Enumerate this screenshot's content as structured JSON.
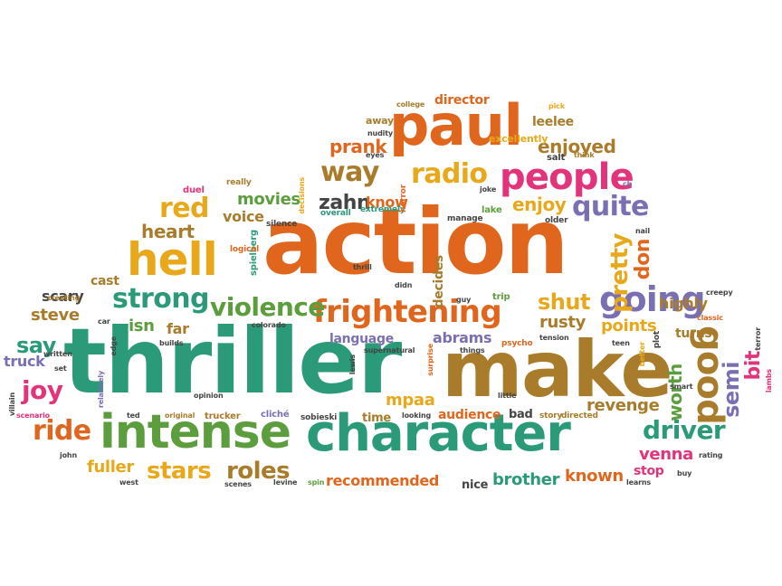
{
  "words": {
    "action": "action",
    "thriller": "thriller",
    "make": "make",
    "character": "character",
    "paul": "paul",
    "intense": "intense",
    "hell": "hell",
    "frightening": "frightening",
    "going": "going",
    "people": "people",
    "good": "good",
    "strong": "strong",
    "violence": "violence",
    "way": "way",
    "radio": "radio",
    "red": "red",
    "quite": "quite",
    "driver": "driver",
    "stars": "stars",
    "roles": "roles",
    "ride": "ride",
    "shut": "shut",
    "pretty": "pretty",
    "prank": "prank",
    "enjoyed": "enjoyed",
    "enjoy": "enjoy",
    "zahn": "zahn",
    "know": "know",
    "heart": "heart",
    "movies": "movies",
    "voice": "voice",
    "bit": "bit",
    "don": "don",
    "worth": "worth",
    "semi": "semi",
    "venna": "venna",
    "known": "known",
    "brother": "brother",
    "fuller": "fuller",
    "joy": "joy",
    "say": "say",
    "steve": "steve",
    "isn": "isn",
    "far": "far",
    "mpaa": "mpaa",
    "abrams": "abrams",
    "rusty": "rusty",
    "points": "points",
    "revenge": "revenge",
    "audience": "audience",
    "recommended": "recommended",
    "time": "time",
    "bad": "bad",
    "leelee": "leelee",
    "director": "director",
    "highly": "highly",
    "turns": "turns",
    "stop": "stop",
    "cast": "cast",
    "scary": "scary",
    "truck": "truck",
    "language": "language",
    "decides": "decides",
    "excellently": "excellently",
    "nice": "nice",
    "away": "away",
    "duel": "duel",
    "really": "really",
    "spielberg": "spielberg",
    "logical": "logical",
    "overall": "overall",
    "extremely": "extremely",
    "silence": "silence",
    "horror": "horror",
    "manage": "manage",
    "lake": "lake",
    "older": "older",
    "joke": "joke",
    "nail": "nail",
    "cb": "cb",
    "salt": "salt",
    "think": "think",
    "pick": "pick",
    "college": "college",
    "nudity": "nudity",
    "eyes": "eyes",
    "decisions": "decisions",
    "creating": "creating",
    "written": "written",
    "set": "set",
    "villain": "villain",
    "scenario": "scenario",
    "john": "john",
    "relatively": "relatively",
    "car": "car",
    "edge": "edge",
    "ted": "ted",
    "original": "original",
    "west": "west",
    "builds": "builds",
    "opinion": "opinion",
    "trucker": "trucker",
    "cliche": "cliché",
    "scenes": "scenes",
    "sobieski": "sobieski",
    "levine": "levine",
    "colorado": "colorado",
    "supernatural": "supernatural",
    "lewis": "lewis",
    "looking": "looking",
    "spin": "spin",
    "thrill": "thrill",
    "didn": "didn",
    "guy": "guy",
    "trip": "trip",
    "things": "things",
    "surprise": "surprise",
    "psycho": "psycho",
    "tension": "tension",
    "little": "little",
    "story": "story",
    "directed": "directed",
    "teen": "teen",
    "better": "better",
    "plot": "plot",
    "classic": "classic",
    "creepy": "creepy",
    "smart": "smart",
    "learns": "learns",
    "buy": "buy",
    "rating": "rating",
    "terror": "terror",
    "lambs": "lambs"
  }
}
